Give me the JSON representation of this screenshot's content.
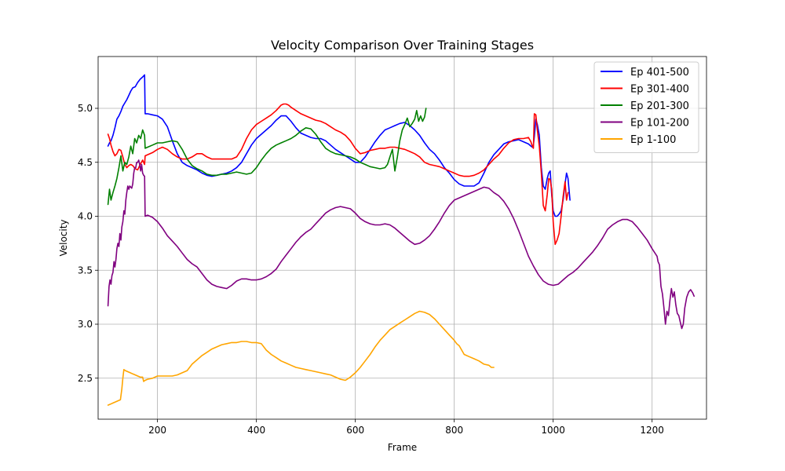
{
  "chart_data": {
    "type": "line",
    "title": "Velocity Comparison Over Training Stages",
    "xlabel": "Frame",
    "ylabel": "Velocity",
    "xlim": [
      80,
      1310
    ],
    "ylim": [
      2.12,
      5.48
    ],
    "xticks": [
      200,
      400,
      600,
      800,
      1000,
      1200
    ],
    "yticks": [
      2.5,
      3.0,
      3.5,
      4.0,
      4.5,
      5.0
    ],
    "grid": true,
    "legend_position": "top-right",
    "series": [
      {
        "name": "Ep 401-500",
        "color": "#0000ff",
        "x": [
          100,
          103,
          106,
          110,
          114,
          118,
          122,
          126,
          130,
          134,
          138,
          142,
          146,
          150,
          155,
          160,
          165,
          170,
          174,
          175,
          180,
          190,
          200,
          210,
          220,
          230,
          240,
          250,
          260,
          270,
          280,
          290,
          300,
          310,
          320,
          330,
          340,
          350,
          360,
          370,
          380,
          390,
          400,
          410,
          420,
          430,
          440,
          450,
          460,
          470,
          480,
          490,
          500,
          510,
          520,
          530,
          540,
          550,
          560,
          570,
          580,
          590,
          600,
          610,
          620,
          630,
          640,
          650,
          660,
          670,
          680,
          690,
          700,
          710,
          720,
          730,
          740,
          750,
          760,
          770,
          780,
          790,
          800,
          810,
          820,
          830,
          840,
          850,
          860,
          870,
          880,
          890,
          900,
          910,
          920,
          930,
          940,
          950,
          955,
          958,
          960,
          962,
          965,
          968,
          972,
          976,
          980,
          984,
          988,
          991,
          994,
          997,
          1000,
          1004,
          1008,
          1012,
          1016,
          1020,
          1024,
          1027,
          1030,
          1034
        ],
        "y": [
          4.65,
          4.68,
          4.7,
          4.75,
          4.82,
          4.9,
          4.93,
          4.97,
          5.02,
          5.05,
          5.08,
          5.12,
          5.16,
          5.19,
          5.2,
          5.24,
          5.27,
          5.29,
          5.31,
          4.95,
          4.95,
          4.94,
          4.93,
          4.9,
          4.83,
          4.7,
          4.58,
          4.5,
          4.47,
          4.45,
          4.43,
          4.4,
          4.38,
          4.37,
          4.38,
          4.39,
          4.4,
          4.42,
          4.45,
          4.5,
          4.58,
          4.66,
          4.72,
          4.76,
          4.8,
          4.84,
          4.89,
          4.93,
          4.93,
          4.88,
          4.82,
          4.77,
          4.75,
          4.73,
          4.72,
          4.72,
          4.7,
          4.66,
          4.62,
          4.59,
          4.56,
          4.53,
          4.5,
          4.5,
          4.55,
          4.62,
          4.69,
          4.75,
          4.8,
          4.82,
          4.84,
          4.86,
          4.87,
          4.84,
          4.8,
          4.75,
          4.68,
          4.62,
          4.58,
          4.52,
          4.45,
          4.4,
          4.34,
          4.3,
          4.28,
          4.28,
          4.28,
          4.31,
          4.4,
          4.5,
          4.57,
          4.62,
          4.67,
          4.69,
          4.7,
          4.71,
          4.69,
          4.67,
          4.65,
          4.64,
          4.66,
          4.74,
          4.9,
          4.85,
          4.75,
          4.45,
          4.28,
          4.25,
          4.35,
          4.4,
          4.42,
          4.2,
          4.05,
          4.0,
          4.0,
          4.02,
          4.05,
          4.15,
          4.3,
          4.4,
          4.35,
          4.15
        ]
      },
      {
        "name": "Ep 301-400",
        "color": "#ff0000",
        "x": [
          100,
          103,
          106,
          110,
          114,
          118,
          122,
          126,
          130,
          134,
          138,
          142,
          146,
          150,
          155,
          160,
          165,
          170,
          174,
          175,
          180,
          190,
          200,
          210,
          220,
          230,
          240,
          250,
          260,
          270,
          280,
          290,
          300,
          310,
          320,
          330,
          340,
          350,
          360,
          370,
          380,
          390,
          400,
          410,
          420,
          430,
          440,
          450,
          455,
          460,
          465,
          470,
          480,
          490,
          500,
          510,
          520,
          530,
          540,
          550,
          560,
          570,
          580,
          590,
          600,
          610,
          620,
          630,
          640,
          650,
          660,
          670,
          680,
          690,
          700,
          710,
          720,
          730,
          740,
          750,
          760,
          770,
          780,
          790,
          800,
          810,
          820,
          830,
          840,
          850,
          860,
          870,
          880,
          890,
          900,
          910,
          920,
          930,
          940,
          950,
          955,
          957,
          960,
          962,
          965,
          968,
          972,
          976,
          980,
          984,
          988,
          991,
          994,
          997,
          1000,
          1004,
          1008,
          1012,
          1016,
          1020,
          1024,
          1027,
          1030
        ],
        "y": [
          4.76,
          4.72,
          4.66,
          4.6,
          4.56,
          4.58,
          4.62,
          4.61,
          4.55,
          4.48,
          4.45,
          4.47,
          4.48,
          4.47,
          4.44,
          4.43,
          4.48,
          4.52,
          4.48,
          4.56,
          4.57,
          4.59,
          4.62,
          4.64,
          4.62,
          4.58,
          4.55,
          4.53,
          4.53,
          4.55,
          4.58,
          4.58,
          4.55,
          4.53,
          4.53,
          4.53,
          4.53,
          4.53,
          4.55,
          4.62,
          4.72,
          4.8,
          4.85,
          4.88,
          4.91,
          4.94,
          4.98,
          5.03,
          5.04,
          5.04,
          5.03,
          5.01,
          4.98,
          4.95,
          4.93,
          4.91,
          4.89,
          4.88,
          4.86,
          4.83,
          4.8,
          4.78,
          4.75,
          4.7,
          4.63,
          4.58,
          4.59,
          4.61,
          4.62,
          4.63,
          4.63,
          4.64,
          4.64,
          4.63,
          4.62,
          4.6,
          4.58,
          4.55,
          4.5,
          4.48,
          4.47,
          4.46,
          4.44,
          4.42,
          4.4,
          4.38,
          4.37,
          4.37,
          4.38,
          4.4,
          4.43,
          4.48,
          4.53,
          4.57,
          4.63,
          4.68,
          4.71,
          4.72,
          4.72,
          4.73,
          4.69,
          4.66,
          4.63,
          4.95,
          4.94,
          4.8,
          4.65,
          4.4,
          4.1,
          4.05,
          4.2,
          4.35,
          4.34,
          4.25,
          3.95,
          3.74,
          3.78,
          3.84,
          4.0,
          4.18,
          4.32,
          4.15,
          4.22
        ]
      },
      {
        "name": "Ep 201-300",
        "color": "#008000",
        "x": [
          100,
          103,
          106,
          110,
          114,
          118,
          122,
          126,
          130,
          134,
          138,
          142,
          146,
          150,
          154,
          158,
          162,
          166,
          170,
          174,
          175,
          180,
          190,
          200,
          210,
          220,
          230,
          240,
          250,
          260,
          270,
          280,
          290,
          300,
          310,
          320,
          330,
          340,
          350,
          360,
          370,
          380,
          390,
          400,
          410,
          420,
          430,
          440,
          450,
          460,
          470,
          480,
          490,
          500,
          510,
          520,
          530,
          540,
          550,
          560,
          570,
          580,
          590,
          600,
          610,
          620,
          630,
          640,
          650,
          660,
          665,
          670,
          675,
          680,
          685,
          690,
          695,
          700,
          705,
          710,
          715,
          720,
          724,
          728,
          732,
          736,
          740,
          743
        ],
        "y": [
          4.11,
          4.25,
          4.15,
          4.22,
          4.28,
          4.35,
          4.45,
          4.56,
          4.42,
          4.5,
          4.48,
          4.55,
          4.65,
          4.58,
          4.72,
          4.68,
          4.75,
          4.72,
          4.8,
          4.75,
          4.63,
          4.64,
          4.66,
          4.68,
          4.68,
          4.69,
          4.7,
          4.69,
          4.62,
          4.53,
          4.47,
          4.44,
          4.42,
          4.39,
          4.38,
          4.38,
          4.39,
          4.39,
          4.4,
          4.41,
          4.4,
          4.39,
          4.4,
          4.45,
          4.52,
          4.58,
          4.63,
          4.66,
          4.68,
          4.7,
          4.72,
          4.75,
          4.79,
          4.82,
          4.81,
          4.76,
          4.69,
          4.63,
          4.6,
          4.58,
          4.57,
          4.56,
          4.55,
          4.53,
          4.5,
          4.48,
          4.46,
          4.45,
          4.44,
          4.45,
          4.48,
          4.55,
          4.62,
          4.42,
          4.55,
          4.7,
          4.8,
          4.85,
          4.91,
          4.83,
          4.86,
          4.9,
          4.98,
          4.88,
          4.93,
          4.88,
          4.92,
          5.0
        ]
      },
      {
        "name": "Ep 101-200",
        "color": "#800080",
        "x": [
          100,
          102,
          104,
          106,
          108,
          110,
          112,
          114,
          116,
          118,
          120,
          122,
          124,
          126,
          128,
          130,
          132,
          134,
          136,
          138,
          140,
          142,
          144,
          146,
          148,
          150,
          152,
          154,
          156,
          158,
          160,
          162,
          164,
          166,
          168,
          170,
          172,
          174,
          175,
          180,
          190,
          200,
          210,
          220,
          230,
          240,
          250,
          260,
          270,
          280,
          290,
          300,
          310,
          320,
          330,
          340,
          350,
          360,
          370,
          380,
          390,
          400,
          410,
          420,
          430,
          440,
          450,
          460,
          470,
          480,
          490,
          500,
          510,
          520,
          530,
          540,
          550,
          560,
          570,
          580,
          590,
          600,
          610,
          620,
          630,
          640,
          650,
          660,
          670,
          680,
          690,
          700,
          710,
          720,
          730,
          740,
          750,
          760,
          770,
          780,
          790,
          800,
          810,
          820,
          830,
          840,
          850,
          860,
          870,
          880,
          890,
          900,
          910,
          920,
          930,
          940,
          950,
          960,
          970,
          980,
          990,
          1000,
          1010,
          1020,
          1030,
          1040,
          1050,
          1060,
          1070,
          1080,
          1090,
          1100,
          1110,
          1120,
          1130,
          1140,
          1150,
          1160,
          1170,
          1180,
          1190,
          1200,
          1210,
          1212,
          1215,
          1218,
          1221,
          1224,
          1227,
          1230,
          1233,
          1236,
          1239,
          1242,
          1245,
          1248,
          1251,
          1254,
          1257,
          1260,
          1263,
          1266,
          1270,
          1274,
          1278,
          1282,
          1285
        ],
        "y": [
          3.17,
          3.35,
          3.41,
          3.37,
          3.45,
          3.48,
          3.58,
          3.53,
          3.6,
          3.7,
          3.75,
          3.72,
          3.84,
          3.78,
          3.9,
          3.95,
          4.05,
          4.02,
          4.15,
          4.22,
          4.28,
          4.25,
          4.28,
          4.27,
          4.26,
          4.3,
          4.4,
          4.45,
          4.45,
          4.5,
          4.5,
          4.52,
          4.48,
          4.42,
          4.48,
          4.4,
          4.38,
          4.37,
          4.0,
          4.01,
          3.99,
          3.95,
          3.89,
          3.82,
          3.77,
          3.72,
          3.66,
          3.6,
          3.56,
          3.53,
          3.47,
          3.41,
          3.37,
          3.35,
          3.34,
          3.33,
          3.36,
          3.4,
          3.42,
          3.42,
          3.41,
          3.41,
          3.42,
          3.44,
          3.47,
          3.51,
          3.58,
          3.64,
          3.7,
          3.76,
          3.81,
          3.85,
          3.88,
          3.93,
          3.98,
          4.03,
          4.06,
          4.08,
          4.09,
          4.08,
          4.07,
          4.03,
          3.98,
          3.95,
          3.93,
          3.92,
          3.92,
          3.93,
          3.92,
          3.89,
          3.85,
          3.81,
          3.77,
          3.74,
          3.75,
          3.78,
          3.82,
          3.88,
          3.95,
          4.03,
          4.1,
          4.15,
          4.17,
          4.19,
          4.21,
          4.23,
          4.25,
          4.27,
          4.26,
          4.22,
          4.19,
          4.14,
          4.07,
          3.98,
          3.87,
          3.75,
          3.63,
          3.54,
          3.46,
          3.4,
          3.37,
          3.36,
          3.37,
          3.41,
          3.45,
          3.48,
          3.52,
          3.57,
          3.62,
          3.67,
          3.73,
          3.8,
          3.88,
          3.92,
          3.95,
          3.97,
          3.97,
          3.95,
          3.9,
          3.84,
          3.78,
          3.7,
          3.63,
          3.58,
          3.55,
          3.35,
          3.28,
          3.15,
          3.0,
          3.12,
          3.08,
          3.22,
          3.33,
          3.25,
          3.3,
          3.18,
          3.1,
          3.08,
          3.02,
          2.96,
          3.0,
          3.15,
          3.25,
          3.3,
          3.32,
          3.29,
          3.26
        ]
      },
      {
        "name": "Ep 1-100",
        "color": "#ffa500",
        "x": [
          100,
          105,
          110,
          115,
          120,
          125,
          128,
          130,
          132,
          135,
          140,
          145,
          150,
          155,
          160,
          165,
          170,
          172,
          175,
          180,
          190,
          200,
          210,
          220,
          230,
          240,
          250,
          260,
          270,
          280,
          290,
          300,
          310,
          320,
          330,
          340,
          350,
          360,
          370,
          380,
          390,
          400,
          410,
          420,
          430,
          440,
          450,
          460,
          470,
          480,
          490,
          500,
          510,
          520,
          530,
          540,
          550,
          560,
          570,
          580,
          590,
          600,
          610,
          620,
          630,
          640,
          650,
          660,
          670,
          680,
          690,
          700,
          710,
          720,
          730,
          740,
          750,
          760,
          770,
          780,
          790,
          800,
          805,
          810,
          820,
          830,
          840,
          850,
          860,
          870,
          875,
          880
        ],
        "y": [
          2.25,
          2.26,
          2.27,
          2.28,
          2.29,
          2.3,
          2.4,
          2.5,
          2.58,
          2.57,
          2.56,
          2.55,
          2.54,
          2.53,
          2.52,
          2.51,
          2.51,
          2.47,
          2.48,
          2.49,
          2.5,
          2.52,
          2.52,
          2.52,
          2.52,
          2.53,
          2.55,
          2.57,
          2.63,
          2.67,
          2.71,
          2.74,
          2.77,
          2.79,
          2.81,
          2.82,
          2.83,
          2.83,
          2.84,
          2.84,
          2.83,
          2.83,
          2.82,
          2.76,
          2.72,
          2.69,
          2.66,
          2.64,
          2.62,
          2.6,
          2.59,
          2.58,
          2.57,
          2.56,
          2.55,
          2.54,
          2.53,
          2.51,
          2.49,
          2.48,
          2.51,
          2.55,
          2.6,
          2.66,
          2.72,
          2.79,
          2.85,
          2.9,
          2.95,
          2.98,
          3.01,
          3.04,
          3.07,
          3.1,
          3.12,
          3.11,
          3.09,
          3.05,
          3.0,
          2.95,
          2.9,
          2.85,
          2.82,
          2.8,
          2.72,
          2.7,
          2.68,
          2.66,
          2.63,
          2.62,
          2.6,
          2.6
        ]
      }
    ]
  }
}
